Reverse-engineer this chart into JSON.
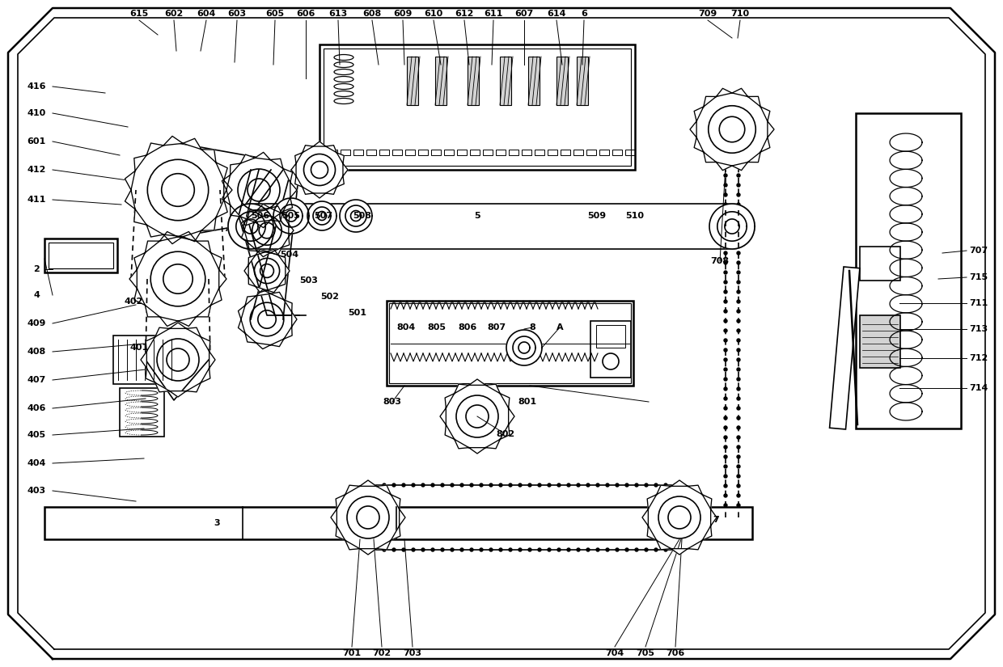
{
  "bg_color": "#ffffff",
  "line_color": "#000000",
  "fig_width": 12.4,
  "fig_height": 8.25,
  "dpi": 100,
  "top_labels": [
    [
      "615",
      172,
      808
    ],
    [
      "602",
      215,
      808
    ],
    [
      "604",
      255,
      808
    ],
    [
      "603",
      293,
      808
    ],
    [
      "605",
      340,
      808
    ],
    [
      "606",
      378,
      808
    ],
    [
      "613",
      418,
      808
    ],
    [
      "608",
      460,
      808
    ],
    [
      "609",
      498,
      808
    ],
    [
      "610",
      536,
      808
    ],
    [
      "612",
      574,
      808
    ],
    [
      "611",
      610,
      808
    ],
    [
      "607",
      648,
      808
    ],
    [
      "614",
      688,
      808
    ],
    [
      "6",
      722,
      808
    ],
    [
      "709",
      875,
      808
    ],
    [
      "710",
      915,
      808
    ]
  ],
  "left_labels": [
    [
      "416",
      45,
      718
    ],
    [
      "410",
      45,
      685
    ],
    [
      "601",
      45,
      650
    ],
    [
      "412",
      45,
      615
    ],
    [
      "411",
      45,
      578
    ],
    [
      "2",
      45,
      492
    ],
    [
      "4",
      45,
      460
    ],
    [
      "409",
      45,
      425
    ],
    [
      "408",
      45,
      390
    ],
    [
      "407",
      45,
      355
    ],
    [
      "406",
      45,
      320
    ],
    [
      "405",
      45,
      287
    ],
    [
      "404",
      45,
      252
    ],
    [
      "403",
      45,
      218
    ]
  ],
  "right_labels": [
    [
      "707",
      1210,
      515
    ],
    [
      "715",
      1210,
      482
    ],
    [
      "711",
      1210,
      450
    ],
    [
      "713",
      1210,
      418
    ],
    [
      "712",
      1210,
      382
    ],
    [
      "714",
      1210,
      345
    ]
  ],
  "bottom_labels": [
    [
      "701",
      435,
      17
    ],
    [
      "702",
      472,
      17
    ],
    [
      "703",
      510,
      17
    ],
    [
      "704",
      760,
      17
    ],
    [
      "705",
      798,
      17
    ],
    [
      "706",
      835,
      17
    ]
  ],
  "interior_labels": [
    [
      "506",
      322,
      558
    ],
    [
      "505",
      360,
      558
    ],
    [
      "507",
      400,
      558
    ],
    [
      "508",
      448,
      558
    ],
    [
      "5",
      590,
      558
    ],
    [
      "509",
      738,
      558
    ],
    [
      "510",
      785,
      558
    ],
    [
      "504",
      358,
      510
    ],
    [
      "503",
      382,
      478
    ],
    [
      "502",
      408,
      458
    ],
    [
      "501",
      442,
      438
    ],
    [
      "804",
      502,
      420
    ],
    [
      "805",
      540,
      420
    ],
    [
      "806",
      578,
      420
    ],
    [
      "807",
      614,
      420
    ],
    [
      "8",
      658,
      420
    ],
    [
      "A",
      692,
      420
    ],
    [
      "803",
      485,
      328
    ],
    [
      "801",
      652,
      328
    ],
    [
      "802",
      625,
      288
    ],
    [
      "3",
      268,
      178
    ],
    [
      "7",
      885,
      182
    ],
    [
      "401",
      172,
      395
    ],
    [
      "402",
      165,
      452
    ],
    [
      "708",
      890,
      502
    ]
  ]
}
